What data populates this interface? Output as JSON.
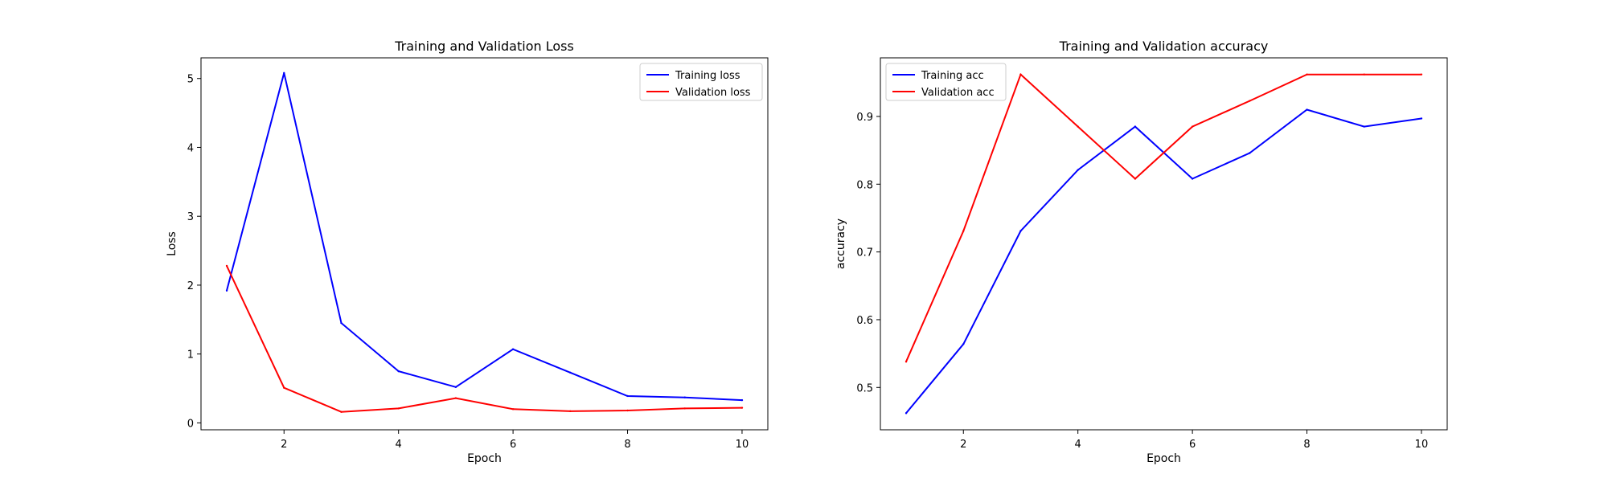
{
  "chart_data": [
    {
      "type": "line",
      "title": "Training and Validation Loss",
      "xlabel": "Epoch",
      "ylabel": "Loss",
      "xlim": [
        0.55,
        10.45
      ],
      "ylim": [
        -0.1,
        5.3
      ],
      "xticks": [
        2,
        4,
        6,
        8,
        10
      ],
      "yticks": [
        0,
        1,
        2,
        3,
        4,
        5
      ],
      "legend_position": "top-right",
      "grid": false,
      "x": [
        1,
        2,
        3,
        4,
        5,
        6,
        7,
        8,
        9,
        10
      ],
      "series": [
        {
          "name": "Training loss",
          "color": "#0000ff",
          "values": [
            1.92,
            5.08,
            1.45,
            0.75,
            0.52,
            1.07,
            0.73,
            0.39,
            0.37,
            0.33
          ]
        },
        {
          "name": "Validation loss",
          "color": "#ff0000",
          "values": [
            2.28,
            0.51,
            0.16,
            0.21,
            0.36,
            0.2,
            0.17,
            0.18,
            0.21,
            0.22
          ]
        }
      ]
    },
    {
      "type": "line",
      "title": "Training and Validation accuracy",
      "xlabel": "Epoch",
      "ylabel": "accuracy",
      "xlim": [
        0.55,
        10.45
      ],
      "ylim": [
        0.4375,
        0.9865
      ],
      "xticks": [
        2,
        4,
        6,
        8,
        10
      ],
      "yticks": [
        0.5,
        0.6,
        0.7,
        0.8,
        0.9
      ],
      "legend_position": "top-left",
      "grid": false,
      "x": [
        1,
        2,
        3,
        4,
        5,
        6,
        7,
        8,
        9,
        10
      ],
      "series": [
        {
          "name": "Training acc",
          "color": "#0000ff",
          "values": [
            0.462,
            0.564,
            0.731,
            0.821,
            0.885,
            0.808,
            0.846,
            0.91,
            0.885,
            0.897
          ]
        },
        {
          "name": "Validation acc",
          "color": "#ff0000",
          "values": [
            0.538,
            0.731,
            0.962,
            0.885,
            0.808,
            0.885,
            0.923,
            0.962,
            0.962,
            0.962
          ]
        }
      ]
    }
  ]
}
